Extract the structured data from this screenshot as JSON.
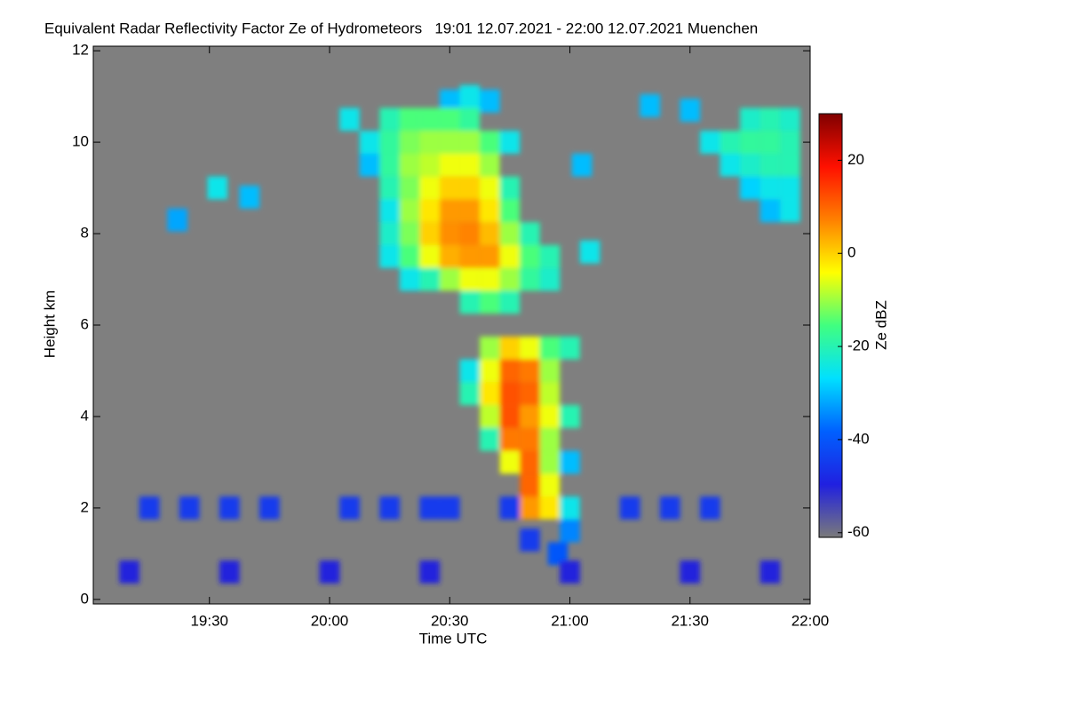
{
  "chart_data": {
    "type": "heatmap",
    "title": "Equivalent Radar Reflectivity Factor Ze of Hydrometeors   19:01 12.07.2021 - 22:00 12.07.2021 Muenchen",
    "x_label": "Time UTC",
    "y_label": "Height km",
    "colorbar_label": "Ze dBZ",
    "xlim": [
      1141,
      1320
    ],
    "xticks": [
      {
        "value": 1170,
        "label": "19:30"
      },
      {
        "value": 1200,
        "label": "20:00"
      },
      {
        "value": 1230,
        "label": "20:30"
      },
      {
        "value": 1260,
        "label": "21:00"
      },
      {
        "value": 1290,
        "label": "21:30"
      },
      {
        "value": 1320,
        "label": "22:00"
      }
    ],
    "ylim": [
      -0.1,
      12.1
    ],
    "yticks": [
      0,
      2,
      4,
      6,
      8,
      10,
      12
    ],
    "vlim": [
      -61,
      30
    ],
    "cbar_ticks": [
      -60,
      -40,
      -20,
      0,
      20
    ],
    "background": "#7f7f7f",
    "colormap": [
      "#7a7a7a",
      "#2020e0",
      "#0060ff",
      "#00e0ff",
      "#40ff80",
      "#ffff00",
      "#ff8000",
      "#ff1000",
      "#800000"
    ],
    "x": [
      1172,
      1180,
      1162,
      1205,
      1210,
      1210,
      1263,
      1265,
      1230,
      1240,
      1215,
      1215,
      1215,
      1215,
      1215,
      1215,
      1215,
      1220,
      1220,
      1220,
      1220,
      1220,
      1220,
      1220,
      1220,
      1225,
      1225,
      1225,
      1225,
      1225,
      1225,
      1225,
      1225,
      1230,
      1230,
      1230,
      1230,
      1230,
      1230,
      1230,
      1230,
      1235,
      1235,
      1235,
      1235,
      1235,
      1235,
      1235,
      1235,
      1235,
      1235,
      1240,
      1240,
      1240,
      1240,
      1240,
      1240,
      1240,
      1240,
      1245,
      1245,
      1245,
      1245,
      1245,
      1245,
      1245,
      1250,
      1250,
      1250,
      1255,
      1255,
      1235,
      1235,
      1240,
      1240,
      1240,
      1240,
      1240,
      1245,
      1245,
      1245,
      1245,
      1245,
      1245,
      1250,
      1250,
      1250,
      1250,
      1250,
      1250,
      1250,
      1250,
      1255,
      1255,
      1255,
      1255,
      1255,
      1255,
      1255,
      1255,
      1260,
      1260,
      1260,
      1260,
      1260,
      1257,
      1280,
      1290,
      1295,
      1300,
      1300,
      1305,
      1305,
      1305,
      1305,
      1310,
      1310,
      1310,
      1310,
      1310,
      1315,
      1315,
      1315,
      1315,
      1315,
      1155,
      1165,
      1175,
      1185,
      1205,
      1215,
      1225,
      1230,
      1245,
      1275,
      1285,
      1295,
      1150,
      1175,
      1200,
      1225,
      1260,
      1290,
      1310,
      1250
    ],
    "y": [
      9.0,
      8.8,
      8.3,
      10.5,
      10.0,
      9.5,
      9.5,
      7.6,
      10.9,
      10.9,
      10.5,
      10.0,
      9.5,
      9.0,
      8.5,
      8.0,
      7.5,
      10.5,
      10.0,
      9.5,
      9.0,
      8.5,
      8.0,
      7.5,
      7.0,
      10.5,
      10.0,
      9.5,
      9.0,
      8.5,
      8.0,
      7.5,
      7.0,
      10.5,
      10.0,
      9.5,
      9.0,
      8.5,
      8.0,
      7.5,
      7.0,
      11.0,
      10.5,
      10.0,
      9.5,
      9.0,
      8.5,
      8.0,
      7.5,
      7.0,
      6.5,
      10.0,
      9.5,
      9.0,
      8.5,
      8.0,
      7.5,
      7.0,
      6.5,
      10.0,
      9.0,
      8.5,
      8.0,
      7.5,
      7.0,
      6.5,
      8.0,
      7.5,
      7.0,
      7.5,
      7.0,
      5.0,
      4.5,
      5.5,
      5.0,
      4.5,
      4.0,
      3.5,
      5.5,
      5.0,
      4.5,
      4.0,
      3.5,
      3.0,
      5.5,
      5.0,
      4.5,
      4.0,
      3.5,
      3.0,
      2.5,
      2.0,
      5.5,
      5.0,
      4.5,
      4.0,
      3.5,
      3.0,
      2.5,
      2.0,
      5.5,
      4.0,
      3.0,
      2.0,
      1.5,
      1.0,
      10.8,
      10.7,
      10.0,
      10.0,
      9.5,
      10.5,
      10.0,
      9.5,
      9.0,
      10.5,
      10.0,
      9.5,
      9.0,
      8.5,
      10.5,
      10.0,
      9.5,
      9.0,
      8.5,
      2.0,
      2.0,
      2.0,
      2.0,
      2.0,
      2.0,
      2.0,
      2.0,
      2.0,
      2.0,
      2.0,
      2.0,
      0.6,
      0.6,
      0.6,
      0.6,
      0.6,
      0.6,
      0.6,
      1.3
    ],
    "values": [
      -25,
      -30,
      -32,
      -25,
      -25,
      -30,
      -30,
      -25,
      -30,
      -30,
      -20,
      -18,
      -18,
      -20,
      -25,
      -22,
      -25,
      -15,
      -12,
      -10,
      -12,
      -10,
      -12,
      -15,
      -25,
      -15,
      -10,
      -8,
      -5,
      -2,
      0,
      -5,
      -20,
      -15,
      -10,
      -5,
      0,
      5,
      6,
      3,
      -10,
      -25,
      -18,
      -10,
      -5,
      0,
      5,
      7,
      5,
      -5,
      -20,
      -15,
      -10,
      -5,
      -2,
      2,
      5,
      -5,
      -15,
      -25,
      -20,
      -15,
      -10,
      -5,
      -10,
      -20,
      -20,
      -15,
      -18,
      -20,
      -22,
      -25,
      -20,
      -10,
      -5,
      -2,
      -8,
      -20,
      0,
      10,
      12,
      12,
      8,
      -5,
      -5,
      8,
      10,
      5,
      8,
      10,
      10,
      5,
      -15,
      -10,
      -8,
      -5,
      -10,
      -10,
      -5,
      -2,
      -20,
      -20,
      -30,
      -25,
      -35,
      -40,
      -30,
      -30,
      -25,
      -20,
      -25,
      -22,
      -18,
      -22,
      -28,
      -20,
      -18,
      -20,
      -25,
      -30,
      -22,
      -20,
      -20,
      -25,
      -25,
      -45,
      -45,
      -45,
      -45,
      -45,
      -45,
      -45,
      -45,
      -45,
      -45,
      -45,
      -45,
      -50,
      -50,
      -50,
      -50,
      -50,
      -50,
      -50,
      -45
    ]
  }
}
